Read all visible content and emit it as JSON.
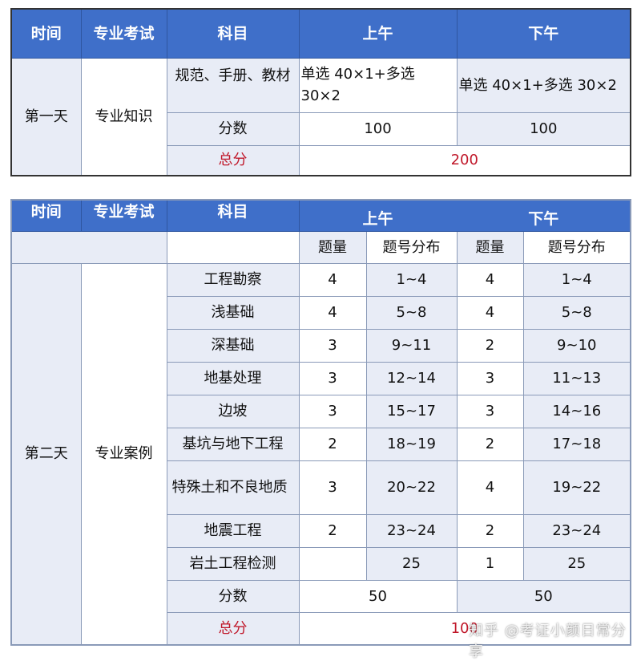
{
  "table1": {
    "headers": [
      "时间",
      "专业考试",
      "科目",
      "上午",
      "下午"
    ],
    "day": "第一天",
    "exam": "专业知识",
    "rows": [
      {
        "subject": "规范、手册、教材",
        "am": "单选 40×1+多选 30×2",
        "pm": "单选 40×1+多选 30×2"
      },
      {
        "subject": "分数",
        "am": "100",
        "pm": "100"
      }
    ],
    "total_label": "总分",
    "total": "200"
  },
  "table2": {
    "headers": [
      "时间",
      "专业考试",
      "科目",
      "上午",
      "下午"
    ],
    "subheaders": [
      "题量",
      "题号分布",
      "题量",
      "题号分布"
    ],
    "day": "第二天",
    "exam": "专业案例",
    "rows": [
      {
        "subject": "工程勘察",
        "am_count": "4",
        "am_range": "1~4",
        "pm_count": "4",
        "pm_range": "1~4"
      },
      {
        "subject": "浅基础",
        "am_count": "4",
        "am_range": "5~8",
        "pm_count": "4",
        "pm_range": "5~8"
      },
      {
        "subject": "深基础",
        "am_count": "3",
        "am_range": "9~11",
        "pm_count": "2",
        "pm_range": "9~10"
      },
      {
        "subject": "地基处理",
        "am_count": "3",
        "am_range": "12~14",
        "pm_count": "3",
        "pm_range": "11~13"
      },
      {
        "subject": "边坡",
        "am_count": "3",
        "am_range": "15~17",
        "pm_count": "3",
        "pm_range": "14~16"
      },
      {
        "subject": "基坑与地下工程",
        "am_count": "2",
        "am_range": "18~19",
        "pm_count": "2",
        "pm_range": "17~18"
      },
      {
        "subject": "特殊土和不良地质",
        "am_count": "3",
        "am_range": "20~22",
        "pm_count": "4",
        "pm_range": "19~22"
      },
      {
        "subject": "地震工程",
        "am_count": "2",
        "am_range": "23~24",
        "pm_count": "2",
        "pm_range": "23~24"
      },
      {
        "subject": "岩土工程检测",
        "am_count": "",
        "am_range": "25",
        "pm_count": "1",
        "pm_range": "25"
      }
    ],
    "score_label": "分数",
    "am_score": "50",
    "pm_score": "50",
    "total_label": "总分",
    "total": "100"
  },
  "watermark": "知乎 @考证小颜日常分享"
}
